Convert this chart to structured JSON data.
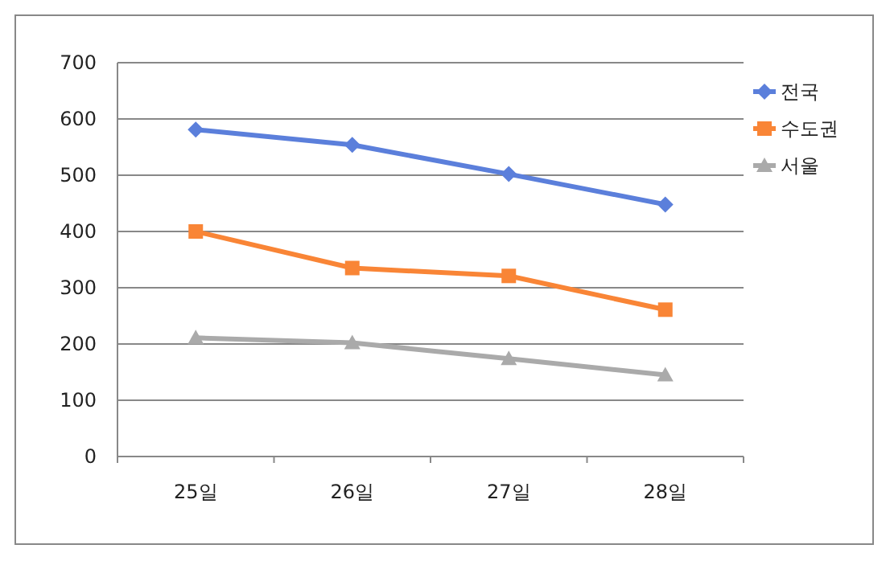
{
  "chart_data": {
    "type": "line",
    "categories": [
      "25일",
      "26일",
      "27일",
      "28일"
    ],
    "series": [
      {
        "name": "전국",
        "color": "#5b7fdb",
        "marker": "diamond",
        "values": [
          581,
          554,
          502,
          448
        ]
      },
      {
        "name": "수도권",
        "color": "#f98536",
        "marker": "square",
        "values": [
          400,
          335,
          321,
          261
        ]
      },
      {
        "name": "서울",
        "color": "#aaaaaa",
        "marker": "triangle",
        "values": [
          211,
          202,
          174,
          145
        ]
      }
    ],
    "ylim": [
      0,
      700
    ],
    "yticks": [
      0,
      100,
      200,
      300,
      400,
      500,
      600,
      700
    ],
    "grid": "y",
    "legend": "right"
  }
}
